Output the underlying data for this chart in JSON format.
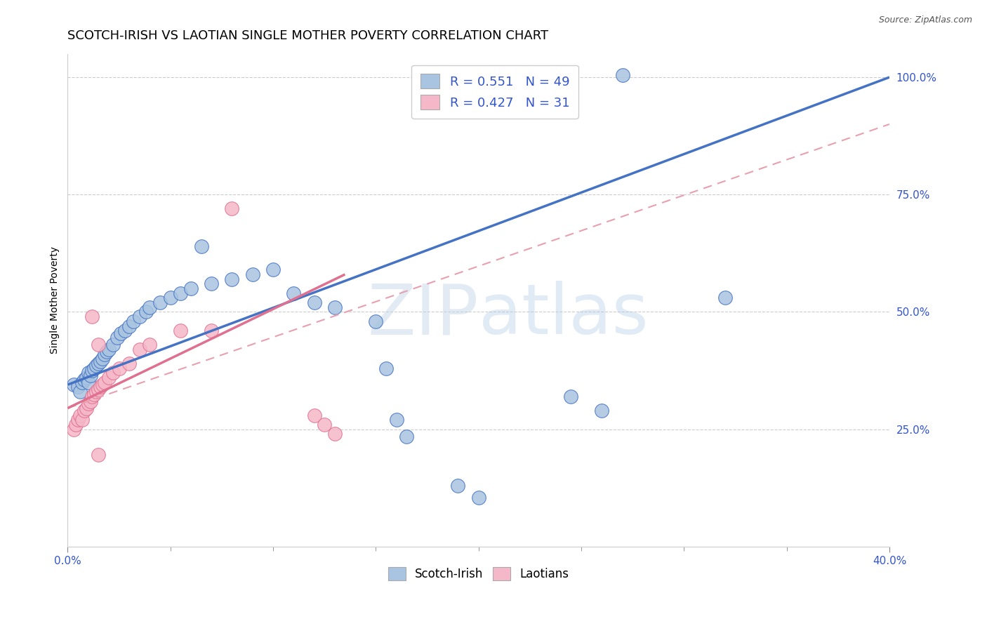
{
  "title": "SCOTCH-IRISH VS LAOTIAN SINGLE MOTHER POVERTY CORRELATION CHART",
  "source": "Source: ZipAtlas.com",
  "ylabel": "Single Mother Poverty",
  "xmin": 0.0,
  "xmax": 0.4,
  "ymin": 0.0,
  "ymax": 1.05,
  "legend_entries": [
    {
      "label_r": "R = 0.551",
      "label_n": "N = 49",
      "color": "#a8c4e0"
    },
    {
      "label_r": "R = 0.427",
      "label_n": "N = 31",
      "color": "#f5b8c8"
    }
  ],
  "legend_labels_bottom": [
    "Scotch-Irish",
    "Laotians"
  ],
  "watermark": "ZIPatlas",
  "blue_scatter": [
    [
      0.003,
      0.345
    ],
    [
      0.005,
      0.34
    ],
    [
      0.006,
      0.33
    ],
    [
      0.007,
      0.35
    ],
    [
      0.008,
      0.355
    ],
    [
      0.009,
      0.36
    ],
    [
      0.01,
      0.37
    ],
    [
      0.01,
      0.35
    ],
    [
      0.011,
      0.365
    ],
    [
      0.012,
      0.375
    ],
    [
      0.013,
      0.38
    ],
    [
      0.014,
      0.385
    ],
    [
      0.015,
      0.39
    ],
    [
      0.016,
      0.395
    ],
    [
      0.017,
      0.4
    ],
    [
      0.018,
      0.41
    ],
    [
      0.019,
      0.415
    ],
    [
      0.02,
      0.42
    ],
    [
      0.022,
      0.43
    ],
    [
      0.024,
      0.445
    ],
    [
      0.026,
      0.455
    ],
    [
      0.028,
      0.46
    ],
    [
      0.03,
      0.47
    ],
    [
      0.032,
      0.48
    ],
    [
      0.035,
      0.49
    ],
    [
      0.038,
      0.5
    ],
    [
      0.04,
      0.51
    ],
    [
      0.045,
      0.52
    ],
    [
      0.05,
      0.53
    ],
    [
      0.055,
      0.54
    ],
    [
      0.06,
      0.55
    ],
    [
      0.065,
      0.64
    ],
    [
      0.07,
      0.56
    ],
    [
      0.08,
      0.57
    ],
    [
      0.09,
      0.58
    ],
    [
      0.1,
      0.59
    ],
    [
      0.11,
      0.54
    ],
    [
      0.12,
      0.52
    ],
    [
      0.13,
      0.51
    ],
    [
      0.15,
      0.48
    ],
    [
      0.155,
      0.38
    ],
    [
      0.16,
      0.27
    ],
    [
      0.165,
      0.235
    ],
    [
      0.19,
      0.13
    ],
    [
      0.2,
      0.105
    ],
    [
      0.245,
      0.32
    ],
    [
      0.26,
      0.29
    ],
    [
      0.32,
      0.53
    ],
    [
      0.27,
      1.005
    ]
  ],
  "pink_scatter": [
    [
      0.003,
      0.25
    ],
    [
      0.004,
      0.26
    ],
    [
      0.005,
      0.27
    ],
    [
      0.006,
      0.28
    ],
    [
      0.007,
      0.27
    ],
    [
      0.008,
      0.29
    ],
    [
      0.009,
      0.295
    ],
    [
      0.01,
      0.305
    ],
    [
      0.011,
      0.31
    ],
    [
      0.012,
      0.32
    ],
    [
      0.013,
      0.325
    ],
    [
      0.014,
      0.33
    ],
    [
      0.015,
      0.335
    ],
    [
      0.016,
      0.34
    ],
    [
      0.017,
      0.345
    ],
    [
      0.018,
      0.35
    ],
    [
      0.02,
      0.36
    ],
    [
      0.022,
      0.37
    ],
    [
      0.025,
      0.38
    ],
    [
      0.03,
      0.39
    ],
    [
      0.012,
      0.49
    ],
    [
      0.015,
      0.43
    ],
    [
      0.035,
      0.42
    ],
    [
      0.04,
      0.43
    ],
    [
      0.055,
      0.46
    ],
    [
      0.07,
      0.46
    ],
    [
      0.08,
      0.72
    ],
    [
      0.12,
      0.28
    ],
    [
      0.125,
      0.26
    ],
    [
      0.13,
      0.24
    ],
    [
      0.015,
      0.195
    ]
  ],
  "blue_line_x": [
    0.0,
    0.4
  ],
  "blue_line_y": [
    0.345,
    1.0
  ],
  "pink_line_x": [
    0.0,
    0.4
  ],
  "pink_line_y": [
    0.295,
    0.9
  ],
  "scatter_blue_color": "#a8c4e0",
  "scatter_pink_color": "#f5b8c8",
  "line_blue_color": "#4472c4",
  "line_pink_color": "#e07090",
  "line_pink_dash_color": "#e8a0b0",
  "background_color": "#ffffff",
  "title_fontsize": 13,
  "axis_label_fontsize": 10,
  "tick_fontsize": 11,
  "right_tick_color": "#3355cc"
}
